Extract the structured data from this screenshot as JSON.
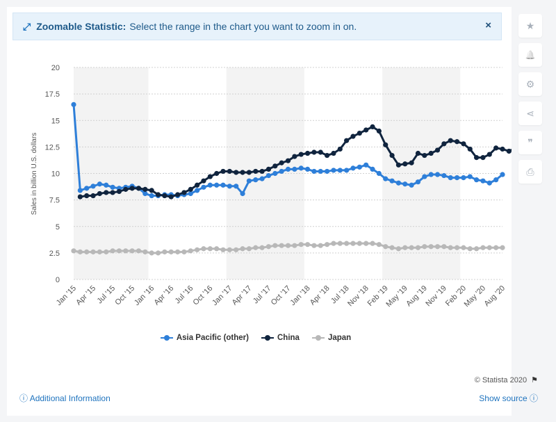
{
  "banner": {
    "icon": "expand-arrows-icon",
    "title": "Zoomable Statistic:",
    "text": "Select the range in the chart you want to zoom in on.",
    "close": "×"
  },
  "side_toolbar": [
    {
      "name": "star-icon",
      "glyph": "★"
    },
    {
      "name": "bell-icon",
      "glyph": "🔔"
    },
    {
      "name": "gear-icon",
      "glyph": "⚙"
    },
    {
      "name": "share-icon",
      "glyph": "⋖"
    },
    {
      "name": "quote-icon",
      "glyph": "❞"
    },
    {
      "name": "print-icon",
      "glyph": "⎙"
    }
  ],
  "footer": {
    "additional_info": "Additional Information",
    "show_source": "Show source",
    "copyright": "© Statista 2020"
  },
  "colors": {
    "asia": "#2e7fd9",
    "china": "#10243e",
    "japan": "#b8b8b8"
  },
  "chart_data": {
    "type": "line",
    "ylabel": "Sales in billion U.S. dollars",
    "xlabel": "",
    "ylim": [
      0,
      20
    ],
    "yticks": [
      "0",
      "2.5",
      "5",
      "7.5",
      "10",
      "12.5",
      "15",
      "17.5",
      "20"
    ],
    "xtick_labels": [
      "Jan '15",
      "Apr '15",
      "Jul '15",
      "Oct '15",
      "Jan '16",
      "Apr '16",
      "Jul '16",
      "Oct '16",
      "Jan '17",
      "Apr '17",
      "Jul '17",
      "Oct '17",
      "Jan '18",
      "Apr '18",
      "Jul '18",
      "Nov '18",
      "Feb '19",
      "May '19",
      "Aug '19",
      "Nov '19",
      "Feb '20",
      "May '20",
      "Aug '20"
    ],
    "grid": true,
    "legend_position": "bottom",
    "series": [
      {
        "name": "Asia Pacific (other)",
        "start_index": 0,
        "values": [
          16.5,
          8.4,
          8.6,
          8.8,
          9.0,
          8.9,
          8.7,
          8.6,
          8.7,
          8.8,
          8.6,
          8.1,
          7.9,
          7.9,
          8.0,
          8.0,
          7.9,
          8.0,
          8.1,
          8.4,
          8.7,
          8.9,
          8.9,
          8.9,
          8.8,
          8.8,
          8.1,
          9.3,
          9.4,
          9.5,
          9.8,
          10.0,
          10.2,
          10.4,
          10.4,
          10.5,
          10.4,
          10.2,
          10.2,
          10.2,
          10.3,
          10.3,
          10.3,
          10.5,
          10.6,
          10.8,
          10.4,
          10.0,
          9.5,
          9.3,
          9.1,
          9.0,
          8.9,
          9.2,
          9.7,
          9.9,
          9.9,
          9.8,
          9.6,
          9.6,
          9.6,
          9.7,
          9.4,
          9.3,
          9.1,
          9.4,
          9.9
        ]
      },
      {
        "name": "China",
        "start_index": 1,
        "values": [
          7.8,
          7.9,
          7.9,
          8.1,
          8.2,
          8.2,
          8.3,
          8.5,
          8.6,
          8.6,
          8.5,
          8.4,
          8.0,
          7.9,
          7.8,
          8.0,
          8.2,
          8.5,
          8.9,
          9.3,
          9.7,
          10.0,
          10.2,
          10.2,
          10.1,
          10.1,
          10.1,
          10.2,
          10.2,
          10.4,
          10.7,
          11.0,
          11.2,
          11.6,
          11.8,
          11.9,
          12.0,
          12.0,
          11.7,
          11.9,
          12.3,
          13.1,
          13.5,
          13.8,
          14.1,
          14.4,
          14.0,
          12.7,
          11.7,
          10.8,
          10.9,
          11.0,
          11.9,
          11.7,
          11.9,
          12.2,
          12.8,
          13.1,
          13.0,
          12.8,
          12.3,
          11.5,
          11.5,
          11.8,
          12.4,
          12.3,
          12.1,
          12.4
        ]
      },
      {
        "name": "Japan",
        "start_index": 0,
        "values": [
          2.7,
          2.6,
          2.6,
          2.6,
          2.6,
          2.6,
          2.7,
          2.7,
          2.7,
          2.7,
          2.7,
          2.6,
          2.5,
          2.5,
          2.6,
          2.6,
          2.6,
          2.6,
          2.7,
          2.8,
          2.9,
          2.9,
          2.9,
          2.8,
          2.8,
          2.8,
          2.9,
          2.9,
          3.0,
          3.0,
          3.1,
          3.2,
          3.2,
          3.2,
          3.2,
          3.3,
          3.3,
          3.2,
          3.2,
          3.3,
          3.4,
          3.4,
          3.4,
          3.4,
          3.4,
          3.4,
          3.4,
          3.3,
          3.1,
          3.0,
          2.9,
          3.0,
          3.0,
          3.0,
          3.1,
          3.1,
          3.1,
          3.1,
          3.0,
          3.0,
          3.0,
          2.9,
          2.9,
          3.0,
          3.0,
          3.0,
          3.0
        ]
      }
    ]
  }
}
